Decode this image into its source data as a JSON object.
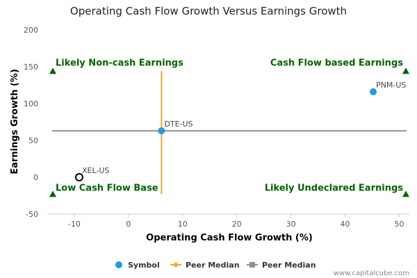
{
  "chart_data": {
    "type": "scatter",
    "title": "Operating Cash Flow Growth Versus Earnings Growth",
    "xlabel": "Operating Cash Flow Growth (%)",
    "ylabel": "Earnings Growth (%)",
    "xlim": [
      -15,
      52
    ],
    "ylim": [
      -50,
      200
    ],
    "x_ticks": [
      -10,
      0,
      10,
      20,
      30,
      40,
      50
    ],
    "y_ticks": [
      -50,
      0,
      50,
      100,
      150,
      200
    ],
    "points": [
      {
        "label": "PNM-US",
        "x": 45.2,
        "y": 116,
        "style": "filled"
      },
      {
        "label": "DTE-US",
        "x": 6.1,
        "y": 63,
        "style": "filled"
      },
      {
        "label": "XEL-US",
        "x": -9.1,
        "y": 0,
        "style": "hollow"
      }
    ],
    "peer_median_x": 6.1,
    "peer_median_x_range": [
      -23,
      144
    ],
    "peer_median_y": 63,
    "quadrants": [
      {
        "text": "Likely Non-cash Earnings",
        "corner": "top-left"
      },
      {
        "text": "Cash Flow based Earnings",
        "corner": "top-right"
      },
      {
        "text": "Low Cash Flow Base",
        "corner": "bottom-left"
      },
      {
        "text": "Likely Undeclared Earnings",
        "corner": "bottom-right"
      }
    ],
    "quadrant_marker_y": [
      144,
      -23
    ],
    "legend": [
      "Symbol",
      "Peer Median",
      "Peer Median"
    ],
    "legend_placement": "bottom-center",
    "grid": false
  },
  "colors": {
    "symbol": "#1f9ee8",
    "peer_median_vertical": "#f5a623",
    "peer_median_horizontal": "#8a9099",
    "quadrant_text": "#006400",
    "axis": "#c8d0da"
  },
  "credit": "www.capitalcube.com"
}
